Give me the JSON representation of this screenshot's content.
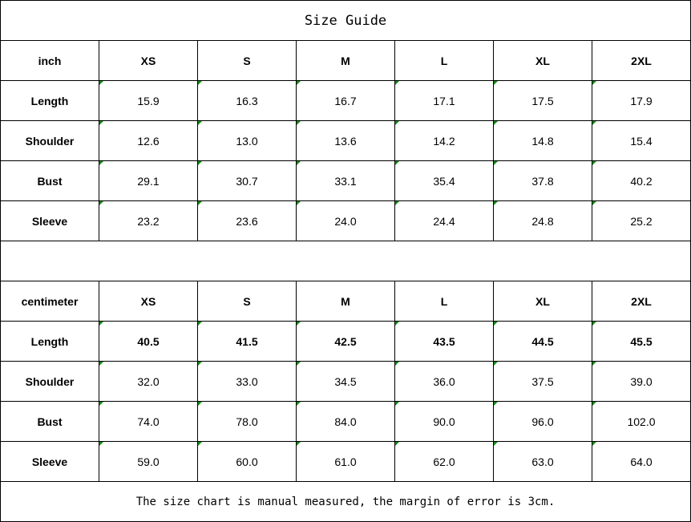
{
  "title": "Size Guide",
  "sizes": [
    "XS",
    "S",
    "M",
    "L",
    "XL",
    "2XL"
  ],
  "inch": {
    "unit_label": "inch",
    "rows": [
      {
        "label": "Length",
        "values": [
          "15.9",
          "16.3",
          "16.7",
          "17.1",
          "17.5",
          "17.9"
        ]
      },
      {
        "label": "Shoulder",
        "values": [
          "12.6",
          "13.0",
          "13.6",
          "14.2",
          "14.8",
          "15.4"
        ]
      },
      {
        "label": "Bust",
        "values": [
          "29.1",
          "30.7",
          "33.1",
          "35.4",
          "37.8",
          "40.2"
        ]
      },
      {
        "label": "Sleeve",
        "values": [
          "23.2",
          "23.6",
          "24.0",
          "24.4",
          "24.8",
          "25.2"
        ]
      }
    ]
  },
  "centimeter": {
    "unit_label": "centimeter",
    "rows": [
      {
        "label": "Length",
        "values": [
          "40.5",
          "41.5",
          "42.5",
          "43.5",
          "44.5",
          "45.5"
        ]
      },
      {
        "label": "Shoulder",
        "values": [
          "32.0",
          "33.0",
          "34.5",
          "36.0",
          "37.5",
          "39.0"
        ]
      },
      {
        "label": "Bust",
        "values": [
          "74.0",
          "78.0",
          "84.0",
          "90.0",
          "96.0",
          "102.0"
        ]
      },
      {
        "label": "Sleeve",
        "values": [
          "59.0",
          "60.0",
          "61.0",
          "62.0",
          "63.0",
          "64.0"
        ]
      }
    ]
  },
  "note": "The size chart is manual measured, the margin of error is 3cm.",
  "colors": {
    "cell_marker": "#118a11",
    "border": "#000000"
  }
}
